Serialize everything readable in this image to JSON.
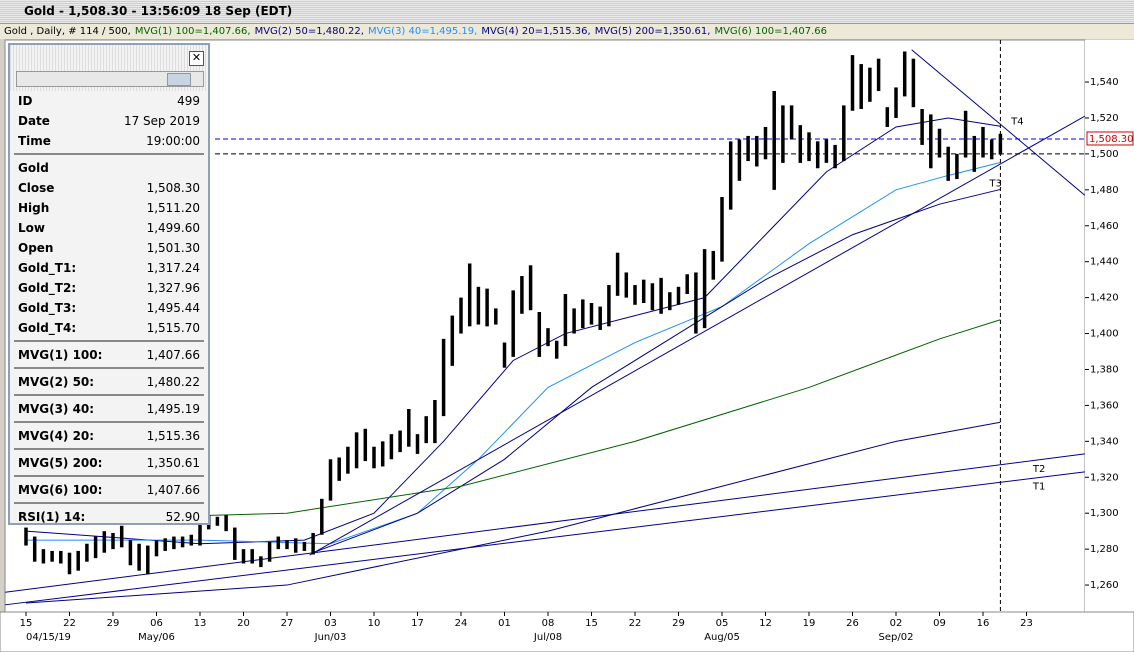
{
  "window": {
    "title": "Gold - 1,508.30 - 13:56:09  18 Sep (EDT)"
  },
  "legend_line": [
    {
      "text": "Gold , Daily, # 114 / 500,",
      "color": "#000000"
    },
    {
      "text": "MVG(1) 100=1,407.66,",
      "color": "#006400"
    },
    {
      "text": "MVG(2) 50=1,480.22,",
      "color": "#000080"
    },
    {
      "text": "MVG(3) 40=1,495.19,",
      "color": "#1e90ff"
    },
    {
      "text": "MVG(4) 20=1,515.36,",
      "color": "#00008b"
    },
    {
      "text": "MVG(5) 200=1,350.61,",
      "color": "#000080"
    },
    {
      "text": "MVG(6) 100=1,407.66",
      "color": "#006400"
    }
  ],
  "panel": {
    "sections": [
      {
        "rows": [
          [
            "ID",
            "499"
          ],
          [
            "Date",
            "17 Sep 2019"
          ],
          [
            "Time",
            "19:00:00"
          ]
        ]
      },
      {
        "heading": "Gold",
        "rows": [
          [
            "Close",
            "1,508.30"
          ],
          [
            "High",
            "1,511.20"
          ],
          [
            "Low",
            "1,499.60"
          ],
          [
            "Open",
            "1,501.30"
          ],
          [
            "Gold_T1:",
            "1,317.24"
          ],
          [
            "Gold_T2:",
            "1,327.96"
          ],
          [
            "Gold_T3:",
            "1,495.44"
          ],
          [
            "Gold_T4:",
            "1,515.70"
          ]
        ]
      },
      {
        "rows": [
          [
            "MVG(1) 100:",
            "1,407.66"
          ]
        ]
      },
      {
        "rows": [
          [
            "MVG(2) 50:",
            "1,480.22"
          ]
        ]
      },
      {
        "rows": [
          [
            "MVG(3) 40:",
            "1,495.19"
          ]
        ]
      },
      {
        "rows": [
          [
            "MVG(4) 20:",
            "1,515.36"
          ]
        ]
      },
      {
        "rows": [
          [
            "MVG(5) 200:",
            "1,350.61"
          ]
        ]
      },
      {
        "rows": [
          [
            "MVG(6) 100:",
            "1,407.66"
          ]
        ]
      },
      {
        "rows": [
          [
            "RSI(1) 14:",
            "52.90"
          ]
        ]
      }
    ]
  },
  "chart_data": {
    "type": "hilo",
    "categories": [
      "15",
      null,
      null,
      null,
      null,
      "22",
      null,
      null,
      null,
      null,
      "29",
      null,
      null,
      null,
      null,
      "06",
      null,
      null,
      null,
      null,
      "13",
      null,
      null,
      null,
      null,
      "20",
      null,
      null,
      null,
      null,
      "27",
      null,
      null,
      null,
      null,
      "03",
      null,
      null,
      null,
      null,
      "10",
      null,
      null,
      null,
      null,
      "17",
      null,
      null,
      null,
      null,
      "24",
      null,
      null,
      null,
      null,
      "01",
      null,
      null,
      null,
      null,
      "08",
      null,
      null,
      null,
      null,
      "15",
      null,
      null,
      null,
      null,
      "22",
      null,
      null,
      null,
      null,
      "29",
      null,
      null,
      null,
      null,
      "05",
      null,
      null,
      null,
      null,
      "12",
      null,
      null,
      null,
      null,
      "19",
      null,
      null,
      null,
      null,
      "26",
      null,
      null,
      null,
      null,
      "02",
      null,
      null,
      null,
      null,
      "09",
      null,
      null,
      null,
      null,
      "16",
      null,
      null,
      null,
      null,
      "23",
      null,
      null,
      null,
      null,
      null,
      null
    ],
    "x_groups": [
      {
        "index": 0,
        "label": "04/15/19"
      },
      {
        "index": 15,
        "label": "May/06"
      },
      {
        "index": 35,
        "label": "Jun/03"
      },
      {
        "index": 60,
        "label": "Jul/08"
      },
      {
        "index": 80,
        "label": "Aug/05"
      },
      {
        "index": 100,
        "label": "Sep/02"
      }
    ],
    "series": [
      {
        "name": "Gold",
        "color": "#000000",
        "high": [
          1292,
          1287,
          1280,
          1279,
          1279,
          1278,
          1279,
          1283,
          1287,
          1290,
          1289,
          1293,
          1285,
          1283,
          1282,
          1285,
          1286,
          1287,
          1287,
          1288,
          1300,
          1299,
          1298,
          1299,
          1292,
          1280,
          1280,
          1276,
          1284,
          1287,
          1285,
          1286,
          1284,
          1289,
          1308,
          1330,
          1331,
          1337,
          1345,
          1347,
          1337,
          1340,
          1344,
          1346,
          1358,
          1344,
          1354,
          1363,
          1397,
          1410,
          1420,
          1439,
          1426,
          1425,
          1414,
          1395,
          1424,
          1432,
          1438,
          1412,
          1403,
          1396,
          1422,
          1414,
          1419,
          1417,
          1415,
          1427,
          1445,
          1434,
          1427,
          1430,
          1428,
          1431,
          1423,
          1426,
          1433,
          1434,
          1447,
          1446,
          1476,
          1507,
          1508,
          1510,
          1510,
          1515,
          1535,
          1527,
          1527,
          1516,
          1512,
          1507,
          1508,
          1505,
          1527,
          1555,
          1550,
          1548,
          1553,
          1526,
          1537,
          1557,
          1553,
          1525,
          1522,
          1514,
          1504,
          1500,
          1524,
          1510,
          1515,
          1508,
          1511.2,
          null,
          null,
          null,
          null,
          null,
          null,
          null,
          null,
          null
        ],
        "low": [
          1282,
          1273,
          1272,
          1273,
          1272,
          1266,
          1268,
          1273,
          1275,
          1278,
          1280,
          1281,
          1271,
          1268,
          1266,
          1276,
          1279,
          1280,
          1281,
          1282,
          1282,
          1291,
          1293,
          1290,
          1274,
          1272,
          1272,
          1270,
          1273,
          1280,
          1280,
          1278,
          1279,
          1277,
          1288,
          1307,
          1318,
          1322,
          1325,
          1329,
          1325,
          1326,
          1330,
          1334,
          1337,
          1333,
          1339,
          1339,
          1354,
          1382,
          1400,
          1404,
          1405,
          1404,
          1405,
          1381,
          1387,
          1411,
          1413,
          1387,
          1393,
          1386,
          1393,
          1400,
          1403,
          1405,
          1402,
          1404,
          1421,
          1420,
          1416,
          1417,
          1413,
          1411,
          1413,
          1416,
          1422,
          1400,
          1403,
          1430,
          1440,
          1469,
          1485,
          1496,
          1493,
          1497,
          1480,
          1495,
          1508,
          1495,
          1496,
          1492,
          1495,
          1492,
          1496,
          1524,
          1525,
          1529,
          1535,
          1515,
          1520,
          1532,
          1526,
          1505,
          1492,
          1498,
          1485,
          1486,
          1498,
          1490,
          1498,
          1497,
          1499.6,
          null,
          null,
          null,
          null,
          null,
          null,
          null,
          null,
          null
        ]
      }
    ],
    "lines": [
      {
        "color": "#00008b",
        "x": [
          0,
          20,
          32,
          40,
          48,
          56,
          62,
          70,
          78,
          84,
          92,
          100,
          106,
          112
        ],
        "values": [
          1290,
          1283,
          1285,
          1300,
          1340,
          1385,
          1400,
          1410,
          1420,
          1450,
          1490,
          1515,
          1520,
          1515.36
        ]
      },
      {
        "color": "#1e90ff",
        "x": [
          0,
          20,
          35,
          45,
          52,
          60,
          70,
          80,
          90,
          100,
          106,
          112
        ],
        "values": [
          1285,
          1285,
          1283,
          1300,
          1330,
          1370,
          1395,
          1415,
          1450,
          1480,
          1488,
          1495.19
        ]
      },
      {
        "color": "#000080",
        "x": [
          33,
          45,
          55,
          65,
          75,
          85,
          95,
          105,
          112
        ],
        "values": [
          1278,
          1300,
          1330,
          1370,
          1400,
          1430,
          1455,
          1472,
          1480.22
        ]
      },
      {
        "color": "#006400",
        "x": [
          0,
          30,
          50,
          70,
          90,
          105,
          112
        ],
        "values": [
          1296,
          1300,
          1315,
          1340,
          1370,
          1397,
          1407.66
        ]
      },
      {
        "color": "#000080",
        "x": [
          0,
          30,
          60,
          80,
          100,
          112
        ],
        "values": [
          1250,
          1260,
          1290,
          1315,
          1340,
          1350.61
        ]
      }
    ],
    "trendlines": [
      {
        "name": "T1",
        "color": "#00008b",
        "x": [
          -2.4,
          121.7
        ],
        "values": [
          1249,
          1323
        ]
      },
      {
        "name": "T2",
        "color": "#00008b",
        "x": [
          -2.4,
          121.7
        ],
        "values": [
          1256,
          1333
        ]
      },
      {
        "name": "T3",
        "color": "#00008b",
        "x": [
          32.6,
          121.7
        ],
        "values": [
          1276.7,
          1521
        ]
      },
      {
        "name": "T4",
        "color": "#00008b",
        "x": [
          101.8,
          121.7
        ],
        "values": [
          1558,
          1477
        ]
      }
    ],
    "hlines": [
      {
        "value": 1508.3,
        "color": "#0000ff",
        "label": "1,508.30"
      },
      {
        "value": 1500,
        "color": "#000000"
      }
    ],
    "vline": 112,
    "ylim": [
      1245,
      1563.4
    ],
    "yticks": [
      {
        "value": 1260,
        "label": "1,260"
      },
      {
        "value": 1280,
        "label": "1,280"
      },
      {
        "value": 1300,
        "label": "1,300"
      },
      {
        "value": 1320,
        "label": "1,320"
      },
      {
        "value": 1340,
        "label": "1,340"
      },
      {
        "value": 1360,
        "label": "1,360"
      },
      {
        "value": 1380,
        "label": "1,380"
      },
      {
        "value": 1400,
        "label": "1,400"
      },
      {
        "value": 1420,
        "label": "1,420"
      },
      {
        "value": 1440,
        "label": "1,440"
      },
      {
        "value": 1460,
        "label": "1,460"
      },
      {
        "value": 1480,
        "label": "1,480"
      },
      {
        "value": 1500,
        "label": "1,500"
      },
      {
        "value": 1520,
        "label": "1,520"
      },
      {
        "value": 1540,
        "label": "1,540"
      }
    ]
  }
}
